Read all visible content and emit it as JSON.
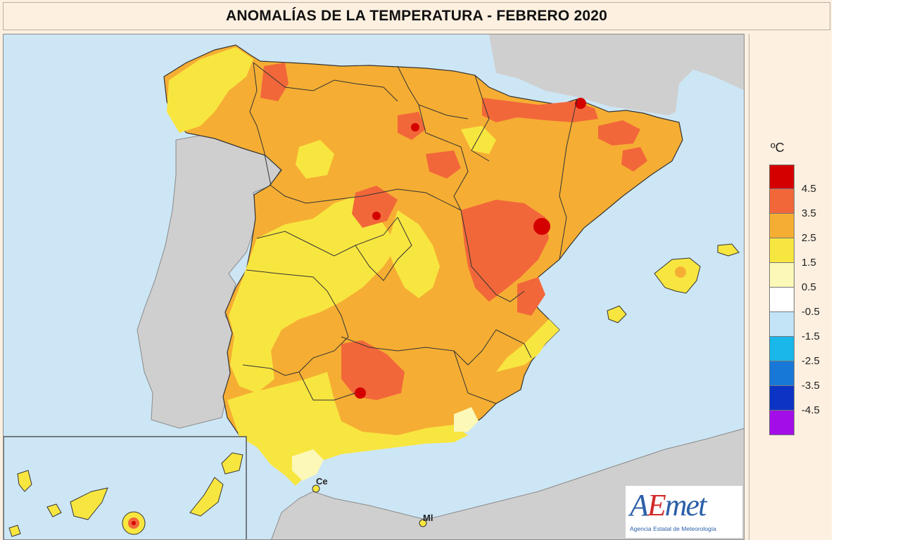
{
  "title": "ANOMALÍAS DE LA TEMPERATURA - FEBRERO 2020",
  "legend": {
    "unit": "ºC",
    "ticks": [
      "4.5",
      "3.5",
      "2.5",
      "1.5",
      "0.5",
      "-0.5",
      "-1.5",
      "-2.5",
      "-3.5",
      "-4.5"
    ],
    "colors": [
      "#d40000",
      "#f2673a",
      "#f5ae33",
      "#f8e640",
      "#fbf8b8",
      "#ffffff",
      "#c3e4f7",
      "#19b7ea",
      "#1878d8",
      "#0c34c4",
      "#a30ee8"
    ]
  },
  "map_colors": {
    "sea": "#cde6f5",
    "land_outside": "#cfcfcf",
    "class_0_5_to_1_5": "#fbf8b8",
    "class_1_5_to_2_5": "#f8e640",
    "class_2_5_to_3_5": "#f5ae33",
    "class_3_5_to_4_5": "#f2673a",
    "class_above_4_5": "#d40000"
  },
  "places": {
    "ceuta": "Ce",
    "melilla": "Ml"
  },
  "logo": {
    "word_a": "A",
    "word_e": "E",
    "word_rest": "met",
    "subtitle": "Agencia Estatal de Meteorología"
  }
}
